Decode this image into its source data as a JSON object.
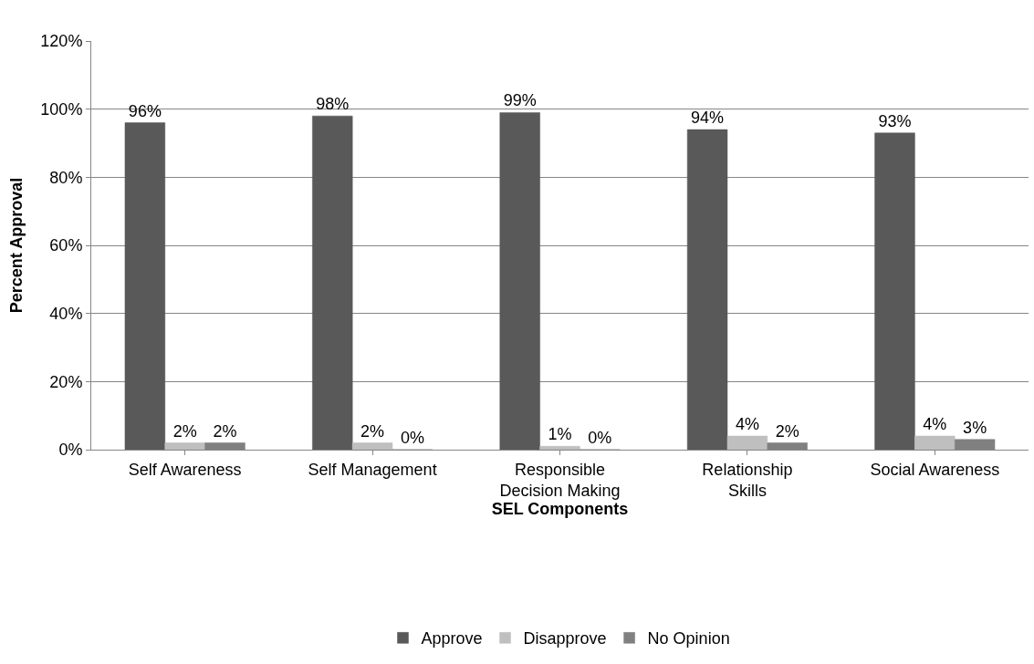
{
  "chart_data": {
    "type": "bar",
    "xlabel": "SEL Components",
    "ylabel": "Percent Approval",
    "categories": [
      "Self Awareness",
      "Self Management",
      "Responsible Decision Making",
      "Relationship Skills",
      "Social Awareness"
    ],
    "series": [
      {
        "name": "Approve",
        "color": "#595959",
        "values": [
          96,
          98,
          99,
          94,
          93
        ],
        "value_labels": [
          "96%",
          "98%",
          "99%",
          "94%",
          "93%"
        ]
      },
      {
        "name": "Disapprove",
        "color": "#bfbfbf",
        "values": [
          2,
          2,
          1,
          4,
          4
        ],
        "value_labels": [
          "2%",
          "2%",
          "1%",
          "4%",
          "4%"
        ]
      },
      {
        "name": "No Opinion",
        "color": "#808080",
        "values": [
          2,
          0,
          0,
          2,
          3
        ],
        "value_labels": [
          "2%",
          "0%",
          "0%",
          "2%",
          "3%"
        ]
      }
    ],
    "ylim": [
      0,
      120
    ],
    "yticks": [
      {
        "value": 0,
        "label": "0%"
      },
      {
        "value": 20,
        "label": "20%"
      },
      {
        "value": 40,
        "label": "40%"
      },
      {
        "value": 60,
        "label": "60%"
      },
      {
        "value": 80,
        "label": "80%"
      },
      {
        "value": 100,
        "label": "100%"
      },
      {
        "value": 120,
        "label": "120%"
      }
    ],
    "grid": "y",
    "legend": "bottom"
  }
}
